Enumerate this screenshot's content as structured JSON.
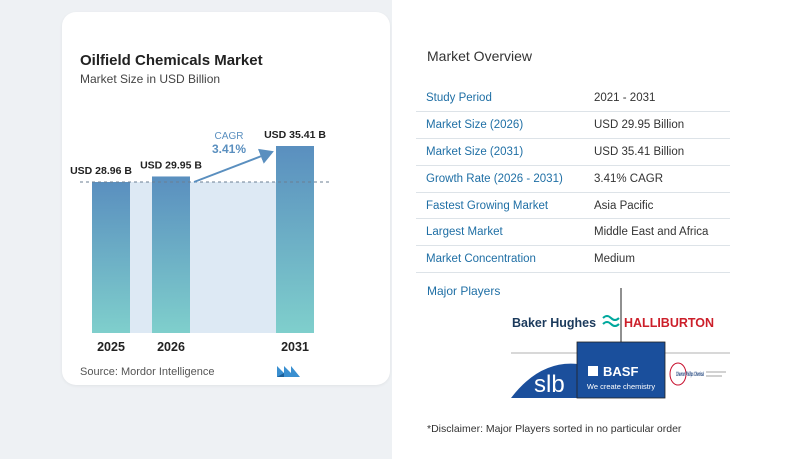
{
  "chart_data": {
    "type": "bar",
    "title": "Oilfield Chemicals Market",
    "subtitle": "Market Size in USD Billion",
    "categories": [
      "2025",
      "2026",
      "2031"
    ],
    "values": [
      28.96,
      29.95,
      35.41
    ],
    "value_labels": [
      "USD 28.96 B",
      "USD 29.95 B",
      "USD 35.41 B"
    ],
    "cagr_label": "CAGR",
    "cagr_value": "3.41%",
    "grid": false,
    "colors": {
      "bar_top": "#5a8fbf",
      "bar_bottom": "#7fcfcc",
      "band": "#dde9f4",
      "arrow": "#5a8fbf"
    }
  },
  "source": "Source:  Mordor Intelligence",
  "brand_icon": "mordor-intelligence-logo",
  "overview": {
    "title": "Market Overview",
    "rows": [
      {
        "label": "Study Period",
        "value": "2021 - 2031"
      },
      {
        "label": "Market Size (2026)",
        "value": "USD 29.95 Billion"
      },
      {
        "label": "Market Size (2031)",
        "value": "USD 35.41 Billion"
      },
      {
        "label": "Growth Rate (2026 - 2031)",
        "value": "3.41% CAGR"
      },
      {
        "label": "Fastest Growing Market",
        "value": "Asia Pacific"
      },
      {
        "label": "Largest Market",
        "value": "Middle East and Africa"
      },
      {
        "label": "Market Concentration",
        "value": "Medium"
      }
    ]
  },
  "players": {
    "title": "Major Players",
    "logos": [
      "Baker Hughes",
      "HALLIBURTON",
      "slb",
      "BASF",
      "We create chemistry",
      "Chevron Phillips Chemical"
    ]
  },
  "disclaimer": "*Disclaimer: Major Players sorted in no particular order"
}
